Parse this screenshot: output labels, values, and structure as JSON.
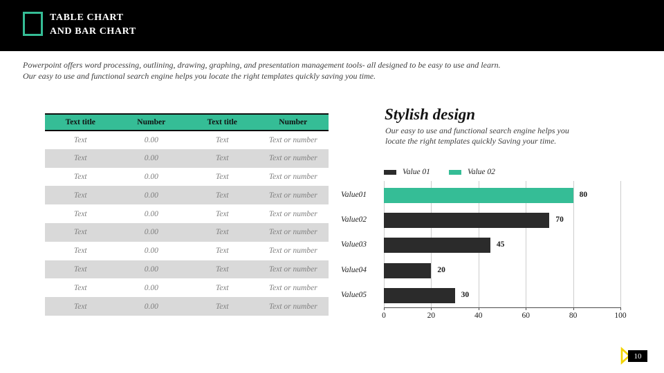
{
  "header": {
    "title_line1": "TABLE CHART",
    "title_line2": "AND BAR CHART"
  },
  "intro": {
    "line1": "Powerpoint offers word processing, outlining, drawing, graphing, and presentation management tools- all designed to be easy to use and learn.",
    "line2": "Our easy to use and functional search engine helps you locate the right templates quickly saving you time."
  },
  "table": {
    "headers": [
      "Text title",
      "Number",
      "Text title",
      "Number"
    ],
    "rows": [
      [
        "Text",
        "0.00",
        "Text",
        "Text or number"
      ],
      [
        "Text",
        "0.00",
        "Text",
        "Text or number"
      ],
      [
        "Text",
        "0.00",
        "Text",
        "Text or number"
      ],
      [
        "Text",
        "0.00",
        "Text",
        "Text or number"
      ],
      [
        "Text",
        "0.00",
        "Text",
        "Text or number"
      ],
      [
        "Text",
        "0.00",
        "Text",
        "Text or number"
      ],
      [
        "Text",
        "0.00",
        "Text",
        "Text or number"
      ],
      [
        "Text",
        "0.00",
        "Text",
        "Text or number"
      ],
      [
        "Text",
        "0.00",
        "Text",
        "Text or number"
      ],
      [
        "Text",
        "0.00",
        "Text",
        "Text or number"
      ]
    ]
  },
  "stylish": {
    "title": "Stylish design",
    "line1": "Our easy to use and functional search engine helps you",
    "line2": "locate the right templates quickly Saving your time."
  },
  "chart_data": {
    "type": "bar",
    "orientation": "horizontal",
    "categories": [
      "Value01",
      "Value02",
      "Value03",
      "Value04",
      "Value05"
    ],
    "values": [
      80,
      70,
      45,
      20,
      30
    ],
    "bar_colors": [
      "#35bd96",
      "#2b2b2b",
      "#2b2b2b",
      "#2b2b2b",
      "#2b2b2b"
    ],
    "legend": [
      {
        "label": "Value 01",
        "color": "#2b2b2b"
      },
      {
        "label": "Value 02",
        "color": "#35bd96"
      }
    ],
    "legend_position": "top",
    "xlim": [
      0,
      100
    ],
    "xticks": [
      0,
      20,
      40,
      60,
      80,
      100
    ],
    "grid": true,
    "title": "",
    "xlabel": "",
    "ylabel": ""
  },
  "footer": {
    "page_number": "10"
  },
  "colors": {
    "accent_teal": "#35bd96",
    "bar_dark": "#2b2b2b",
    "row_shade": "#d9d9d9",
    "banner_black": "#000000",
    "page_flag_yellow": "#f2d400"
  }
}
